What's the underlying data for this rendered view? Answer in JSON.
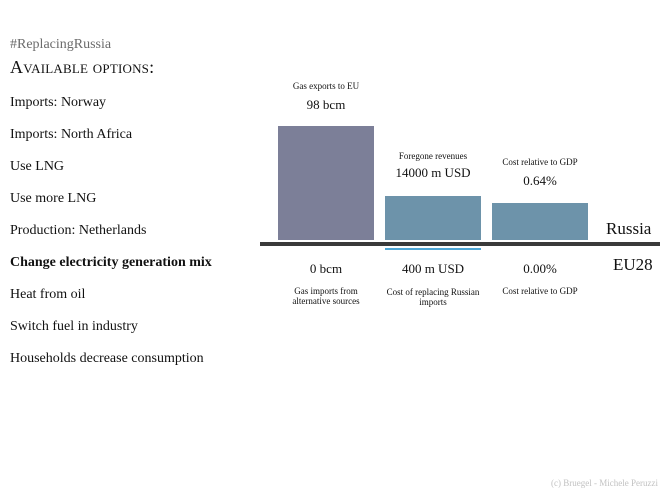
{
  "header": {
    "hashtag": "#ReplacingRussia",
    "options_title": "Available options:"
  },
  "options": [
    {
      "label": "Imports: Norway",
      "active": false
    },
    {
      "label": "Imports: North Africa",
      "active": false
    },
    {
      "label": "Use LNG",
      "active": false
    },
    {
      "label": "Use more LNG",
      "active": false
    },
    {
      "label": "Production: Netherlands",
      "active": false
    },
    {
      "label": "Change electricity generation mix",
      "active": true
    },
    {
      "label": "Heat from oil",
      "active": false
    },
    {
      "label": "Switch fuel in industry",
      "active": false
    },
    {
      "label": "Households decrease consumption",
      "active": false
    }
  ],
  "russia": {
    "label": "Russia",
    "metrics": [
      {
        "title": "Gas exports to EU",
        "value": "98 bcm",
        "color": "#7c7f98"
      },
      {
        "title": "Foregone revenues",
        "value": "14000 m USD",
        "color": "#6d93aa"
      },
      {
        "title": "Cost relative to GDP",
        "value": "0.64%",
        "color": "#6d93aa"
      }
    ]
  },
  "eu28": {
    "label": "EU28",
    "metrics": [
      {
        "title": "Gas imports from alternative sources",
        "value": "0 bcm",
        "color": "#4fa7d6"
      },
      {
        "title": "Cost of replacing Russian imports",
        "value": "400 m USD",
        "color": "#4fa7d6"
      },
      {
        "title": "Cost relative to GDP",
        "value": "0.00%",
        "color": "#4fa7d6"
      }
    ]
  },
  "credit": "(c) Bruegel - Michele Peruzzi"
}
